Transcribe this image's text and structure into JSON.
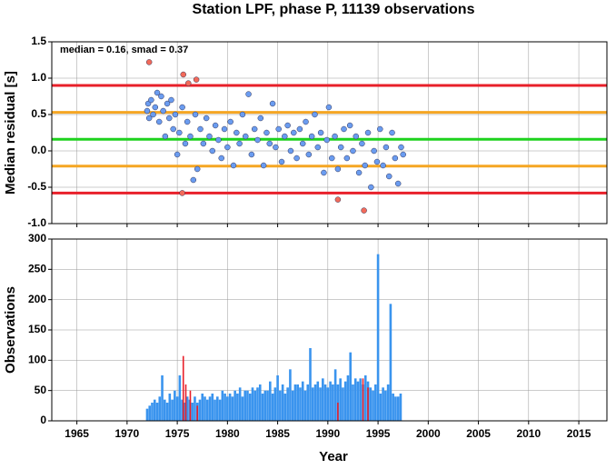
{
  "chart_data": [
    {
      "type": "scatter",
      "title": "Station LPF, phase P, 11139 observations",
      "annotation": "median = 0.16, smad = 0.37",
      "ylabel": "Median residual [s]",
      "xlim": [
        1962.5,
        2017.8
      ],
      "xticks": [
        1965,
        1970,
        1975,
        1980,
        1985,
        1990,
        1995,
        2000,
        2005,
        2010,
        2015
      ],
      "ylim": [
        -1,
        1.5
      ],
      "yticks": [
        {
          "value": -1,
          "label": "-1.0"
        },
        -0.5,
        {
          "value": 0,
          "label": "0.0"
        },
        0.5,
        {
          "value": 1,
          "label": "1.0"
        },
        1.5
      ],
      "grid": true,
      "hlines": [
        {
          "value": 0.9,
          "color": "#e8202a"
        },
        {
          "value": -0.58,
          "color": "#e8202a"
        },
        {
          "value": 0.53,
          "color": "#f5a623"
        },
        {
          "value": -0.21,
          "color": "#f5a623"
        },
        {
          "value": 0.16,
          "color": "#1ed21e"
        }
      ],
      "series": [
        {
          "color": "#6a9cf0",
          "x": [
            1972.0,
            1972.1,
            1972.2,
            1972.4,
            1972.6,
            1972.8,
            1973.0,
            1973.2,
            1973.4,
            1973.6,
            1973.8,
            1974.0,
            1974.2,
            1974.4,
            1974.6,
            1974.8,
            1975.0,
            1975.2,
            1975.5,
            1975.8,
            1976.0,
            1976.3,
            1976.6,
            1976.8,
            1977.0,
            1977.3,
            1977.6,
            1977.9,
            1978.2,
            1978.5,
            1978.8,
            1979.1,
            1979.4,
            1979.7,
            1980.0,
            1980.3,
            1980.6,
            1980.9,
            1981.2,
            1981.5,
            1981.8,
            1982.1,
            1982.4,
            1982.7,
            1983.0,
            1983.3,
            1983.6,
            1983.9,
            1984.2,
            1984.5,
            1984.8,
            1985.1,
            1985.4,
            1985.7,
            1986.0,
            1986.3,
            1986.6,
            1986.9,
            1987.2,
            1987.5,
            1987.8,
            1988.1,
            1988.4,
            1988.7,
            1989.0,
            1989.3,
            1989.6,
            1989.9,
            1990.1,
            1990.4,
            1990.7,
            1991.0,
            1991.3,
            1991.6,
            1991.9,
            1992.2,
            1992.5,
            1992.8,
            1993.1,
            1993.4,
            1993.7,
            1994.0,
            1994.3,
            1994.6,
            1994.9,
            1995.2,
            1995.5,
            1995.8,
            1996.1,
            1996.4,
            1996.7,
            1997.0,
            1997.3,
            1997.5
          ],
          "values": [
            0.55,
            0.65,
            0.45,
            0.7,
            0.5,
            0.6,
            0.8,
            0.4,
            0.75,
            0.55,
            0.2,
            0.65,
            0.45,
            0.7,
            0.3,
            0.5,
            -0.05,
            0.25,
            0.6,
            0.1,
            0.4,
            0.2,
            -0.4,
            0.5,
            -0.25,
            0.3,
            0.1,
            0.45,
            0.2,
            0,
            0.35,
            0.15,
            -0.1,
            0.3,
            0.05,
            0.4,
            -0.2,
            0.25,
            0.1,
            0.5,
            0.2,
            0.78,
            -0.05,
            0.3,
            0.15,
            0.45,
            -0.2,
            0.25,
            0.1,
            0.65,
            0.05,
            0.3,
            -0.15,
            0.2,
            0.35,
            0,
            0.25,
            -0.1,
            0.3,
            0.1,
            0.4,
            -0.05,
            0.2,
            0.5,
            0.05,
            0.25,
            -0.3,
            0.15,
            0.6,
            -0.1,
            0.2,
            -0.25,
            0.05,
            0.3,
            -0.1,
            0.35,
            0,
            0.2,
            -0.3,
            0.1,
            -0.2,
            0.25,
            -0.5,
            0,
            -0.15,
            0.3,
            -0.2,
            0.05,
            -0.35,
            0.25,
            -0.1,
            -0.45,
            0.05,
            -0.05
          ]
        },
        {
          "color": "#f26a5a",
          "x": [
            1972.2,
            1975.6,
            1976.1,
            1976.9,
            1975.5,
            1991.0,
            1993.6
          ],
          "values": [
            1.22,
            1.05,
            0.93,
            0.98,
            -0.58,
            -0.67,
            -0.82
          ]
        }
      ]
    },
    {
      "type": "bar",
      "ylabel": "Observations",
      "xlabel": "Year",
      "xlim": [
        1962.5,
        2017.8
      ],
      "xticks": [
        1965,
        1970,
        1975,
        1980,
        1985,
        1990,
        1995,
        2000,
        2005,
        2010,
        2015
      ],
      "ylim": [
        0,
        300
      ],
      "yticks": [
        0,
        50,
        100,
        150,
        200,
        250,
        300
      ],
      "grid": true,
      "series": [
        {
          "color": "#3a94ee",
          "x": [
            1972,
            1972.25,
            1972.5,
            1972.75,
            1973,
            1973.25,
            1973.5,
            1973.75,
            1974,
            1974.25,
            1974.5,
            1974.75,
            1975,
            1975.25,
            1975.5,
            1975.75,
            1976,
            1976.25,
            1976.5,
            1976.75,
            1977,
            1977.25,
            1977.5,
            1977.75,
            1978,
            1978.25,
            1978.5,
            1978.75,
            1979,
            1979.25,
            1979.5,
            1979.75,
            1980,
            1980.25,
            1980.5,
            1980.75,
            1981,
            1981.25,
            1981.5,
            1981.75,
            1982,
            1982.25,
            1982.5,
            1982.75,
            1983,
            1983.25,
            1983.5,
            1983.75,
            1984,
            1984.25,
            1984.5,
            1984.75,
            1985,
            1985.25,
            1985.5,
            1985.75,
            1986,
            1986.25,
            1986.5,
            1986.75,
            1987,
            1987.25,
            1987.5,
            1987.75,
            1988,
            1988.25,
            1988.5,
            1988.75,
            1989,
            1989.25,
            1989.5,
            1989.75,
            1990,
            1990.25,
            1990.5,
            1990.75,
            1991,
            1991.25,
            1991.5,
            1991.75,
            1992,
            1992.25,
            1992.5,
            1992.75,
            1993,
            1993.25,
            1993.5,
            1993.75,
            1994,
            1994.25,
            1994.5,
            1994.75,
            1995,
            1995.25,
            1995.5,
            1995.75,
            1996,
            1996.25,
            1996.5,
            1996.75,
            1997,
            1997.25
          ],
          "values": [
            20,
            25,
            30,
            35,
            30,
            40,
            75,
            35,
            30,
            45,
            35,
            50,
            40,
            75,
            35,
            30,
            40,
            35,
            30,
            40,
            30,
            35,
            45,
            40,
            35,
            40,
            45,
            35,
            40,
            35,
            50,
            45,
            40,
            45,
            40,
            50,
            45,
            55,
            40,
            50,
            50,
            45,
            55,
            50,
            55,
            60,
            45,
            50,
            50,
            65,
            45,
            55,
            75,
            50,
            60,
            45,
            55,
            85,
            50,
            60,
            60,
            55,
            65,
            50,
            60,
            120,
            55,
            60,
            65,
            55,
            70,
            60,
            55,
            65,
            60,
            85,
            60,
            70,
            55,
            65,
            75,
            113,
            60,
            70,
            65,
            70,
            60,
            75,
            65,
            55,
            50,
            60,
            275,
            45,
            55,
            50,
            60,
            193,
            45,
            40,
            40,
            45
          ]
        },
        {
          "color": "#e8202a",
          "x": [
            1975.6,
            1975.85,
            1976.3,
            1977.0,
            1991.0,
            1993.5,
            1994.0
          ],
          "values": [
            107,
            60,
            50,
            25,
            30,
            70,
            55
          ]
        }
      ]
    }
  ]
}
